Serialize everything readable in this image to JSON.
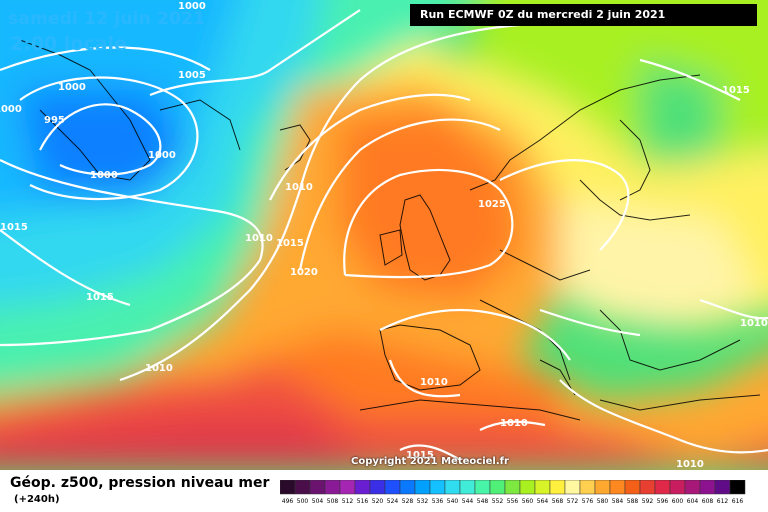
{
  "header": {
    "date": "samedi 12 juin 2021",
    "time": "2:00 locale",
    "run": "Run ECMWF 0Z du mercredi 2 juin 2021"
  },
  "footer": {
    "field_title": "Géop. z500, pression niveau mer",
    "lead_time": "(+240h)",
    "copyright": "Copyright 2021 Meteociel.fr"
  },
  "isobar_labels": [
    "1000",
    "1005",
    "1000",
    "995",
    "1000",
    "1000",
    "1000",
    "1010",
    "1015",
    "1010",
    "1015",
    "1020",
    "1025",
    "1015",
    "1015",
    "1010",
    "1010",
    "1010",
    "1010",
    "1015",
    "1010"
  ],
  "legend": {
    "values": [
      "496",
      "500",
      "504",
      "508",
      "512",
      "516",
      "520",
      "524",
      "528",
      "532",
      "536",
      "540",
      "544",
      "548",
      "552",
      "556",
      "560",
      "564",
      "568",
      "572",
      "576",
      "580",
      "584",
      "588",
      "592",
      "596",
      "600",
      "604",
      "608",
      "612",
      "616"
    ],
    "colors": [
      "#2a0a2a",
      "#4a0f4a",
      "#6a1470",
      "#8a1a96",
      "#a626b4",
      "#6a1ed2",
      "#3a2fe6",
      "#1e50ff",
      "#0a78ff",
      "#00a0ff",
      "#14c0ff",
      "#30dcf0",
      "#40ecd8",
      "#48f4a8",
      "#50f078",
      "#7ce840",
      "#a8f020",
      "#d8f428",
      "#fff040",
      "#fff8a0",
      "#ffd050",
      "#ffa830",
      "#ff8820",
      "#f56018",
      "#e84030",
      "#e02848",
      "#c81e60",
      "#a81878",
      "#8c1290",
      "#600c88",
      "#000000"
    ]
  }
}
